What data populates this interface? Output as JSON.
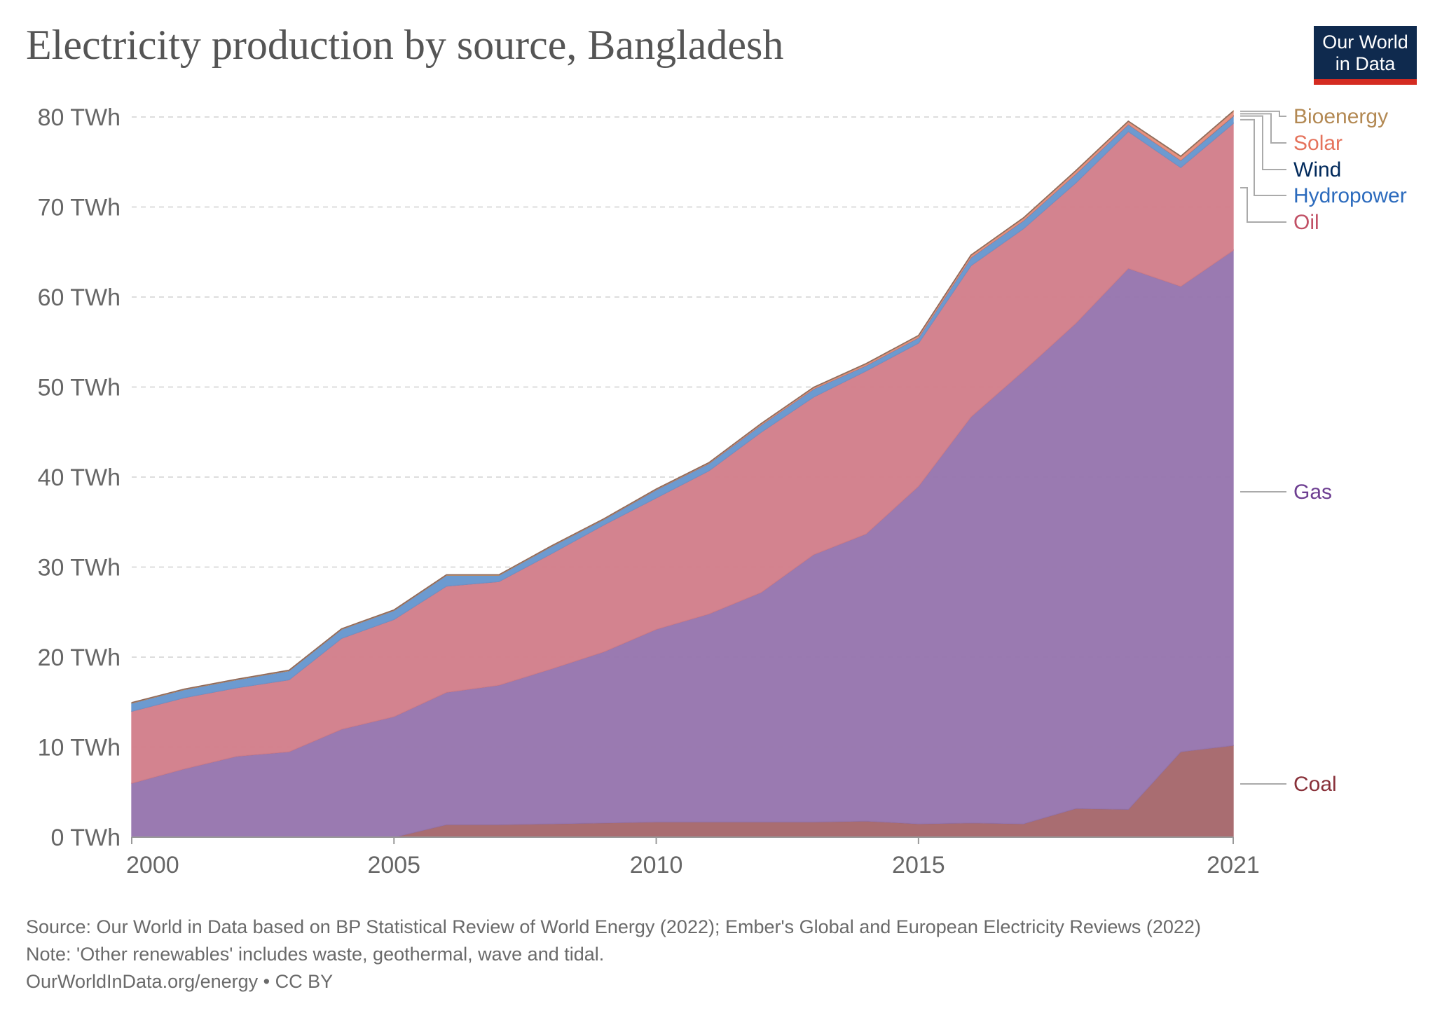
{
  "chart_data": {
    "type": "area",
    "stacked": true,
    "title": "Electricity production by source, Bangladesh",
    "x": [
      2000,
      2001,
      2002,
      2003,
      2004,
      2005,
      2006,
      2007,
      2008,
      2009,
      2010,
      2011,
      2012,
      2013,
      2014,
      2015,
      2016,
      2017,
      2018,
      2019,
      2020,
      2021
    ],
    "x_ticks": [
      "2000",
      "2005",
      "2010",
      "2015",
      "2021"
    ],
    "x_tick_values": [
      2000,
      2005,
      2010,
      2015,
      2021
    ],
    "y_ticks": [
      "0 TWh",
      "10 TWh",
      "20 TWh",
      "30 TWh",
      "40 TWh",
      "50 TWh",
      "60 TWh",
      "70 TWh",
      "80 TWh"
    ],
    "y_tick_values": [
      0,
      10,
      20,
      30,
      40,
      50,
      60,
      70,
      80
    ],
    "ylim": [
      0,
      80
    ],
    "unit": "TWh",
    "grid": "horizontal dashed",
    "legend": "right, inline labels",
    "series": [
      {
        "name": "Coal",
        "color": "#a86b6f",
        "label_color": "#883039",
        "values": [
          0,
          0,
          0,
          0,
          0,
          0,
          1.4,
          1.4,
          1.5,
          1.6,
          1.7,
          1.7,
          1.7,
          1.7,
          1.8,
          1.5,
          1.6,
          1.5,
          3.2,
          3.1,
          9.5,
          10.2
        ]
      },
      {
        "name": "Gas",
        "color": "#9878b0",
        "label_color": "#6d3e91",
        "values": [
          6.0,
          7.6,
          9.0,
          9.5,
          12.0,
          13.4,
          14.7,
          15.5,
          17.2,
          19.0,
          21.4,
          23.1,
          25.5,
          29.7,
          31.9,
          37.5,
          45.1,
          50.3,
          53.9,
          60.1,
          51.7,
          55.0
        ]
      },
      {
        "name": "Oil",
        "color": "#d3818d",
        "label_color": "#c15065",
        "values": [
          8.0,
          7.9,
          7.6,
          8.0,
          10.1,
          10.8,
          11.8,
          11.5,
          12.8,
          14.1,
          14.6,
          15.9,
          17.8,
          17.5,
          18.1,
          15.9,
          16.8,
          15.8,
          15.6,
          15.2,
          13.2,
          14.1
        ]
      },
      {
        "name": "Hydropower",
        "color": "#6a98d0",
        "label_color": "#2c6bbd",
        "values": [
          0.9,
          0.9,
          0.9,
          1.0,
          1.0,
          1.0,
          1.2,
          0.7,
          0.8,
          0.6,
          0.9,
          0.8,
          0.8,
          0.9,
          0.6,
          0.6,
          0.9,
          0.9,
          1.0,
          0.8,
          0.8,
          0.8
        ]
      },
      {
        "name": "Wind",
        "color": "#1d3c6e",
        "label_color": "#00295b",
        "values": [
          0,
          0,
          0,
          0,
          0,
          0,
          0,
          0,
          0,
          0,
          0,
          0,
          0,
          0,
          0,
          0,
          0,
          0,
          0,
          0,
          0,
          0.01
        ]
      },
      {
        "name": "Solar",
        "color": "#e88f7e",
        "label_color": "#e5735c",
        "values": [
          0,
          0,
          0,
          0,
          0,
          0,
          0,
          0,
          0.01,
          0.02,
          0.03,
          0.05,
          0.1,
          0.13,
          0.16,
          0.19,
          0.22,
          0.25,
          0.3,
          0.3,
          0.4,
          0.5
        ]
      },
      {
        "name": "Bioenergy",
        "color": "#c29e72",
        "label_color": "#b38953",
        "values": [
          0.05,
          0.05,
          0.05,
          0.05,
          0.05,
          0.05,
          0.05,
          0.05,
          0.05,
          0.05,
          0.05,
          0.05,
          0.05,
          0.05,
          0.05,
          0.05,
          0.05,
          0.05,
          0.05,
          0.05,
          0.05,
          0.05
        ]
      }
    ]
  },
  "logo": {
    "line1": "Our World",
    "line2": "in Data"
  },
  "footer": {
    "source": "Source: Our World in Data based on BP Statistical Review of World Energy (2022); Ember's Global and European Electricity Reviews (2022)",
    "note": "Note: 'Other renewables' includes waste, geothermal, wave and tidal.",
    "license": "OurWorldInData.org/energy • CC BY"
  }
}
